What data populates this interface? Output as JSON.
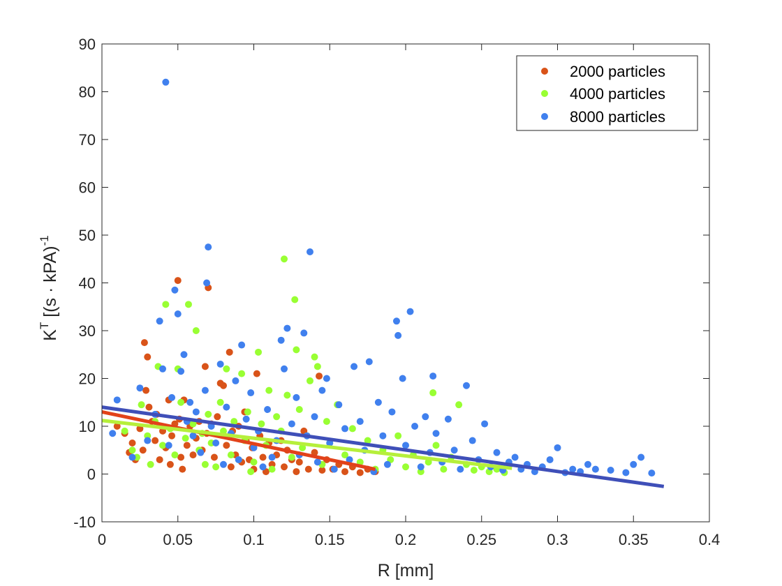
{
  "chart_data": {
    "type": "scatter",
    "title": "",
    "xlabel": "R [mm]",
    "ylabel_main": "K",
    "ylabel_sup": "T",
    "ylabel_rest": " [(s · kPA)",
    "ylabel_sup2": "-1",
    "xlim": [
      0,
      0.4
    ],
    "ylim": [
      -10,
      90
    ],
    "x_ticks": [
      0,
      0.05,
      0.1,
      0.15,
      0.2,
      0.25,
      0.3,
      0.35,
      0.4
    ],
    "x_tick_labels": [
      "0",
      "0.05",
      "0.1",
      "0.15",
      "0.2",
      "0.25",
      "0.3",
      "0.35",
      "0.4"
    ],
    "y_ticks": [
      -10,
      0,
      10,
      20,
      30,
      40,
      50,
      60,
      70,
      80,
      90
    ],
    "y_tick_labels": [
      "-10",
      "0",
      "10",
      "20",
      "30",
      "40",
      "50",
      "60",
      "70",
      "80",
      "90"
    ],
    "grid": false,
    "legend_position": "top-right",
    "series": [
      {
        "name": "2000 particles",
        "color": "#d95319",
        "fit": {
          "x": [
            0,
            0.18
          ],
          "y": [
            13,
            1
          ]
        },
        "points": [
          [
            0.01,
            10
          ],
          [
            0.015,
            8.5
          ],
          [
            0.018,
            4.5
          ],
          [
            0.02,
            6.5
          ],
          [
            0.022,
            3
          ],
          [
            0.025,
            9.5
          ],
          [
            0.027,
            5
          ],
          [
            0.028,
            27.5
          ],
          [
            0.029,
            17.5
          ],
          [
            0.03,
            24.5
          ],
          [
            0.031,
            14
          ],
          [
            0.033,
            11
          ],
          [
            0.035,
            7
          ],
          [
            0.036,
            12.5
          ],
          [
            0.038,
            3
          ],
          [
            0.04,
            9
          ],
          [
            0.042,
            5.5
          ],
          [
            0.044,
            15.5
          ],
          [
            0.045,
            2
          ],
          [
            0.046,
            8
          ],
          [
            0.048,
            10.5
          ],
          [
            0.05,
            40.5
          ],
          [
            0.051,
            11.5
          ],
          [
            0.052,
            3.5
          ],
          [
            0.053,
            1
          ],
          [
            0.054,
            15.5
          ],
          [
            0.056,
            6
          ],
          [
            0.058,
            10
          ],
          [
            0.06,
            4
          ],
          [
            0.062,
            7.5
          ],
          [
            0.064,
            11
          ],
          [
            0.066,
            5
          ],
          [
            0.068,
            22.5
          ],
          [
            0.069,
            8.5
          ],
          [
            0.07,
            39
          ],
          [
            0.072,
            10.5
          ],
          [
            0.074,
            3.5
          ],
          [
            0.076,
            12
          ],
          [
            0.078,
            19
          ],
          [
            0.08,
            18.5
          ],
          [
            0.082,
            6
          ],
          [
            0.084,
            25.5
          ],
          [
            0.085,
            1.5
          ],
          [
            0.086,
            9
          ],
          [
            0.088,
            4
          ],
          [
            0.09,
            10
          ],
          [
            0.092,
            2.5
          ],
          [
            0.094,
            13
          ],
          [
            0.095,
            7
          ],
          [
            0.097,
            3
          ],
          [
            0.099,
            5.5
          ],
          [
            0.1,
            1
          ],
          [
            0.102,
            21
          ],
          [
            0.104,
            8
          ],
          [
            0.106,
            3.5
          ],
          [
            0.108,
            0.5
          ],
          [
            0.11,
            6.5
          ],
          [
            0.112,
            2
          ],
          [
            0.115,
            4
          ],
          [
            0.118,
            7
          ],
          [
            0.12,
            1.5
          ],
          [
            0.122,
            5
          ],
          [
            0.125,
            3
          ],
          [
            0.128,
            0.5
          ],
          [
            0.13,
            2.5
          ],
          [
            0.133,
            9
          ],
          [
            0.136,
            1
          ],
          [
            0.14,
            4.5
          ],
          [
            0.143,
            20.5
          ],
          [
            0.145,
            0.8
          ],
          [
            0.148,
            3
          ],
          [
            0.152,
            1
          ],
          [
            0.156,
            2
          ],
          [
            0.16,
            0.5
          ],
          [
            0.165,
            1.5
          ],
          [
            0.17,
            0.3
          ],
          [
            0.175,
            1
          ],
          [
            0.18,
            0.5
          ]
        ]
      },
      {
        "name": "4000 particles",
        "color": "#99ff33",
        "fit": {
          "x": [
            0,
            0.27
          ],
          "y": [
            11.2,
            1.2
          ]
        },
        "points": [
          [
            0.015,
            9
          ],
          [
            0.02,
            5
          ],
          [
            0.023,
            3.5
          ],
          [
            0.026,
            14.5
          ],
          [
            0.03,
            8
          ],
          [
            0.032,
            2
          ],
          [
            0.035,
            11
          ],
          [
            0.037,
            22.5
          ],
          [
            0.04,
            6
          ],
          [
            0.042,
            35.5
          ],
          [
            0.045,
            9.5
          ],
          [
            0.048,
            4
          ],
          [
            0.05,
            22
          ],
          [
            0.052,
            15
          ],
          [
            0.055,
            7.5
          ],
          [
            0.057,
            35.5
          ],
          [
            0.06,
            10.5
          ],
          [
            0.062,
            30
          ],
          [
            0.064,
            5
          ],
          [
            0.066,
            8.5
          ],
          [
            0.068,
            2
          ],
          [
            0.07,
            12.5
          ],
          [
            0.072,
            6.5
          ],
          [
            0.075,
            1.5
          ],
          [
            0.078,
            15
          ],
          [
            0.08,
            9
          ],
          [
            0.082,
            22
          ],
          [
            0.085,
            4
          ],
          [
            0.087,
            11
          ],
          [
            0.09,
            3
          ],
          [
            0.092,
            21
          ],
          [
            0.094,
            7
          ],
          [
            0.096,
            13
          ],
          [
            0.098,
            0.5
          ],
          [
            0.1,
            2.5
          ],
          [
            0.103,
            25.5
          ],
          [
            0.105,
            10.5
          ],
          [
            0.108,
            6
          ],
          [
            0.11,
            17.5
          ],
          [
            0.112,
            1
          ],
          [
            0.115,
            12
          ],
          [
            0.118,
            9
          ],
          [
            0.12,
            45
          ],
          [
            0.122,
            16.5
          ],
          [
            0.125,
            3.5
          ],
          [
            0.127,
            36.5
          ],
          [
            0.128,
            26
          ],
          [
            0.13,
            13.5
          ],
          [
            0.132,
            5.5
          ],
          [
            0.135,
            8
          ],
          [
            0.137,
            19.5
          ],
          [
            0.14,
            24.5
          ],
          [
            0.142,
            22.5
          ],
          [
            0.145,
            2
          ],
          [
            0.148,
            11
          ],
          [
            0.15,
            6.5
          ],
          [
            0.155,
            14.5
          ],
          [
            0.16,
            4
          ],
          [
            0.165,
            9.5
          ],
          [
            0.17,
            2.5
          ],
          [
            0.175,
            7
          ],
          [
            0.18,
            1
          ],
          [
            0.185,
            5
          ],
          [
            0.19,
            3
          ],
          [
            0.195,
            8
          ],
          [
            0.2,
            1.5
          ],
          [
            0.205,
            4
          ],
          [
            0.21,
            0.5
          ],
          [
            0.215,
            2.5
          ],
          [
            0.218,
            17
          ],
          [
            0.22,
            6
          ],
          [
            0.225,
            1
          ],
          [
            0.23,
            3.5
          ],
          [
            0.235,
            14.5
          ],
          [
            0.24,
            2
          ],
          [
            0.245,
            0.8
          ],
          [
            0.25,
            1.5
          ],
          [
            0.255,
            0.5
          ],
          [
            0.26,
            1
          ],
          [
            0.265,
            0.3
          ]
        ]
      },
      {
        "name": "8000 particles",
        "color": "#4080ee",
        "fit": {
          "x": [
            0,
            0.37
          ],
          "y": [
            14,
            -2.6
          ]
        },
        "points": [
          [
            0.007,
            8.5
          ],
          [
            0.01,
            15.5
          ],
          [
            0.02,
            3.5
          ],
          [
            0.025,
            18
          ],
          [
            0.03,
            7
          ],
          [
            0.035,
            12.5
          ],
          [
            0.038,
            32
          ],
          [
            0.04,
            22
          ],
          [
            0.042,
            82
          ],
          [
            0.044,
            6
          ],
          [
            0.046,
            16
          ],
          [
            0.048,
            38.5
          ],
          [
            0.05,
            33.5
          ],
          [
            0.052,
            21.5
          ],
          [
            0.054,
            25
          ],
          [
            0.056,
            11
          ],
          [
            0.058,
            15
          ],
          [
            0.06,
            8
          ],
          [
            0.062,
            13
          ],
          [
            0.065,
            4.5
          ],
          [
            0.068,
            17.5
          ],
          [
            0.069,
            40
          ],
          [
            0.07,
            47.5
          ],
          [
            0.072,
            10
          ],
          [
            0.075,
            6.5
          ],
          [
            0.078,
            23
          ],
          [
            0.08,
            2
          ],
          [
            0.082,
            14
          ],
          [
            0.085,
            8.5
          ],
          [
            0.088,
            19.5
          ],
          [
            0.09,
            3
          ],
          [
            0.092,
            27
          ],
          [
            0.095,
            11.5
          ],
          [
            0.098,
            17
          ],
          [
            0.1,
            5.5
          ],
          [
            0.103,
            9
          ],
          [
            0.106,
            1.5
          ],
          [
            0.109,
            13.5
          ],
          [
            0.112,
            3.5
          ],
          [
            0.115,
            7
          ],
          [
            0.118,
            28
          ],
          [
            0.12,
            22
          ],
          [
            0.122,
            30.5
          ],
          [
            0.125,
            10.5
          ],
          [
            0.128,
            16
          ],
          [
            0.13,
            4
          ],
          [
            0.133,
            29.5
          ],
          [
            0.135,
            8
          ],
          [
            0.137,
            46.5
          ],
          [
            0.14,
            12
          ],
          [
            0.142,
            2.5
          ],
          [
            0.145,
            17.5
          ],
          [
            0.148,
            20
          ],
          [
            0.15,
            6.5
          ],
          [
            0.153,
            1
          ],
          [
            0.156,
            14.5
          ],
          [
            0.16,
            9.5
          ],
          [
            0.163,
            3
          ],
          [
            0.166,
            22.5
          ],
          [
            0.17,
            11
          ],
          [
            0.173,
            5
          ],
          [
            0.176,
            23.5
          ],
          [
            0.179,
            0.5
          ],
          [
            0.182,
            15
          ],
          [
            0.185,
            8
          ],
          [
            0.188,
            2
          ],
          [
            0.191,
            13
          ],
          [
            0.194,
            32
          ],
          [
            0.195,
            29
          ],
          [
            0.198,
            20
          ],
          [
            0.2,
            6
          ],
          [
            0.203,
            34
          ],
          [
            0.206,
            10
          ],
          [
            0.21,
            1.5
          ],
          [
            0.213,
            12
          ],
          [
            0.216,
            4.5
          ],
          [
            0.218,
            20.5
          ],
          [
            0.22,
            8.5
          ],
          [
            0.224,
            2.5
          ],
          [
            0.228,
            11.5
          ],
          [
            0.232,
            5
          ],
          [
            0.236,
            1
          ],
          [
            0.24,
            18.5
          ],
          [
            0.244,
            7
          ],
          [
            0.248,
            3
          ],
          [
            0.252,
            10.5
          ],
          [
            0.256,
            1.5
          ],
          [
            0.26,
            4.5
          ],
          [
            0.264,
            0.8
          ],
          [
            0.268,
            2.5
          ],
          [
            0.272,
            3.5
          ],
          [
            0.276,
            1
          ],
          [
            0.28,
            2
          ],
          [
            0.285,
            0.5
          ],
          [
            0.29,
            1.5
          ],
          [
            0.295,
            3
          ],
          [
            0.3,
            5.5
          ],
          [
            0.305,
            0.3
          ],
          [
            0.31,
            1
          ],
          [
            0.315,
            0.5
          ],
          [
            0.32,
            2
          ],
          [
            0.325,
            1
          ],
          [
            0.335,
            0.8
          ],
          [
            0.345,
            0.3
          ],
          [
            0.35,
            2
          ],
          [
            0.355,
            3.5
          ],
          [
            0.362,
            0.2
          ]
        ]
      }
    ]
  }
}
